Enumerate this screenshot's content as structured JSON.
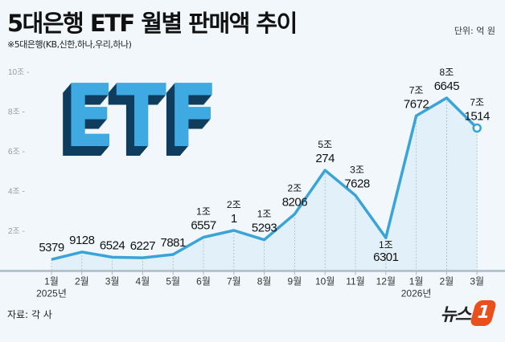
{
  "header": {
    "title": "5대은행 ETF 월별 판매액 추이",
    "unit": "단위: 억 원",
    "note": "※5대은행(KB,신한,하나,우리,하나)"
  },
  "decoration": {
    "etf_text": "ETF"
  },
  "footer": {
    "source": "자료: 각 사",
    "logo_text": "뉴스",
    "logo_mark": "1"
  },
  "colors": {
    "line": "#3aa3d8",
    "area": "#dceef8",
    "axis": "#b8c4cc",
    "logo": "#e8501e"
  },
  "chart_data": {
    "type": "line",
    "title": "5대은행 ETF 월별 판매액 추이",
    "unit": "억 원",
    "categories": [
      "1월",
      "2월",
      "3월",
      "4월",
      "5월",
      "6월",
      "7월",
      "8월",
      "9월",
      "10월",
      "11월",
      "12월",
      "1월",
      "2월",
      "3월"
    ],
    "year_labels": [
      {
        "index": 0,
        "label": "2025년"
      },
      {
        "index": 12,
        "label": "2026년"
      }
    ],
    "values": [
      5379,
      9128,
      6524,
      6227,
      7881,
      16557,
      20001,
      15293,
      28206,
      50274,
      37628,
      16301,
      77672,
      86645,
      71514
    ],
    "data_labels": [
      {
        "jo": "",
        "eok": "5379"
      },
      {
        "jo": "",
        "eok": "9128"
      },
      {
        "jo": "",
        "eok": "6524"
      },
      {
        "jo": "",
        "eok": "6227"
      },
      {
        "jo": "",
        "eok": "7881"
      },
      {
        "jo": "1조",
        "eok": "6557"
      },
      {
        "jo": "2조",
        "eok": "1"
      },
      {
        "jo": "1조",
        "eok": "5293"
      },
      {
        "jo": "2조",
        "eok": "8206"
      },
      {
        "jo": "5조",
        "eok": "274"
      },
      {
        "jo": "3조",
        "eok": "7628"
      },
      {
        "jo": "1조",
        "eok": "6301"
      },
      {
        "jo": "7조",
        "eok": "7672"
      },
      {
        "jo": "8조",
        "eok": "6645"
      },
      {
        "jo": "7조",
        "eok": "1514"
      }
    ],
    "yticks": [
      {
        "v": 20000,
        "label": "2조"
      },
      {
        "v": 40000,
        "label": "4조"
      },
      {
        "v": 60000,
        "label": "6조"
      },
      {
        "v": 80000,
        "label": "8조"
      },
      {
        "v": 100000,
        "label": "10조"
      }
    ],
    "ylim": [
      0,
      100000
    ],
    "grid": false,
    "area_fill": true,
    "last_point_marker": "hollow-circle"
  }
}
